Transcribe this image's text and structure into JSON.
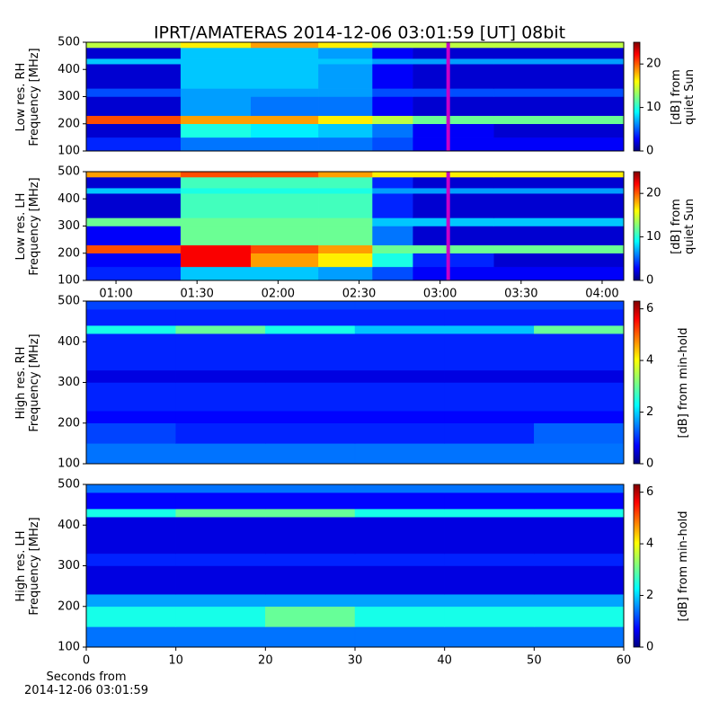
{
  "title": "IPRT/AMATERAS 2014-12-06 03:01:59 [UT]   08bit",
  "chart_data": [
    {
      "type": "heatmap",
      "ylabel": "Low res. RH\nFrequency [MHz]",
      "colorbar_label": "[dB] from\nquiet Sun",
      "colormap": "jet",
      "x_edges": [
        "00:49",
        "01:24",
        "01:50",
        "02:15",
        "02:35",
        "02:50",
        "03:20",
        "04:08"
      ],
      "y_edges": [
        100,
        150,
        200,
        230,
        300,
        330,
        420,
        440,
        480,
        500
      ],
      "values": [
        [
          4,
          6,
          6,
          6,
          5,
          3,
          3
        ],
        [
          2,
          10,
          9,
          8,
          6,
          3,
          2
        ],
        [
          20,
          18,
          18,
          16,
          14,
          12,
          12
        ],
        [
          2,
          7,
          6,
          6,
          3,
          2,
          2
        ],
        [
          5,
          7,
          7,
          7,
          5,
          5,
          5
        ],
        [
          2,
          8,
          8,
          7,
          3,
          2,
          2
        ],
        [
          8,
          8,
          8,
          8,
          7,
          7,
          7
        ],
        [
          2,
          8,
          8,
          7,
          3,
          2,
          2
        ],
        [
          14,
          16,
          18,
          16,
          14,
          14,
          14
        ]
      ],
      "xlim": [
        "00:49",
        "04:08"
      ],
      "ylim": [
        100,
        500
      ],
      "yticks": [
        100,
        200,
        300,
        400,
        500
      ],
      "clim": [
        0,
        25
      ],
      "cticks": [
        0,
        10,
        20
      ],
      "marker_x": "03:03",
      "marker_color": "#c800c8"
    },
    {
      "type": "heatmap",
      "ylabel": "Low res. LH\nFrequency [MHz]",
      "colorbar_label": "[dB] from\nquiet Sun",
      "colormap": "jet",
      "x_edges": [
        "00:49",
        "01:24",
        "01:50",
        "02:15",
        "02:35",
        "02:50",
        "03:20",
        "04:08"
      ],
      "y_edges": [
        100,
        150,
        200,
        230,
        300,
        330,
        420,
        440,
        480,
        500
      ],
      "values": [
        [
          4,
          8,
          8,
          7,
          5,
          3,
          3
        ],
        [
          3,
          22,
          18,
          16,
          10,
          4,
          2
        ],
        [
          20,
          22,
          20,
          18,
          12,
          12,
          12
        ],
        [
          3,
          12,
          12,
          12,
          6,
          2,
          2
        ],
        [
          12,
          12,
          12,
          12,
          8,
          8,
          8
        ],
        [
          2,
          11,
          11,
          11,
          4,
          2,
          2
        ],
        [
          8,
          10,
          10,
          10,
          7,
          7,
          7
        ],
        [
          2,
          11,
          11,
          11,
          4,
          2,
          2
        ],
        [
          18,
          20,
          20,
          18,
          16,
          16,
          16
        ]
      ],
      "xlim": [
        "00:49",
        "04:08"
      ],
      "xticks": [
        "01:00",
        "01:30",
        "02:00",
        "02:30",
        "03:00",
        "03:30",
        "04:00"
      ],
      "ylim": [
        100,
        500
      ],
      "yticks": [
        100,
        200,
        300,
        400,
        500
      ],
      "clim": [
        0,
        25
      ],
      "cticks": [
        0,
        10,
        20
      ],
      "marker_x": "03:03",
      "marker_color": "#c800c8"
    },
    {
      "type": "heatmap",
      "ylabel": "High res. RH\nFrequency [MHz]",
      "colorbar_label": "[dB] from min-hold",
      "colormap": "jet",
      "x_edges": [
        0,
        10,
        20,
        30,
        40,
        50,
        60
      ],
      "y_edges": [
        100,
        150,
        200,
        230,
        300,
        330,
        420,
        440,
        480,
        500
      ],
      "values": [
        [
          1.5,
          1.5,
          1.5,
          1.5,
          1.5,
          1.5
        ],
        [
          1.2,
          1.0,
          1.0,
          1.0,
          1.0,
          1.4
        ],
        [
          0.8,
          0.8,
          0.8,
          0.8,
          0.8,
          0.8
        ],
        [
          1.0,
          1.0,
          1.0,
          1.0,
          1.0,
          1.0
        ],
        [
          0.6,
          0.6,
          0.6,
          0.6,
          0.6,
          0.6
        ],
        [
          1.0,
          1.0,
          1.0,
          1.0,
          1.0,
          1.0
        ],
        [
          2.5,
          3,
          2.5,
          2,
          2,
          3
        ],
        [
          1.0,
          1.0,
          1.0,
          1.0,
          1.0,
          1.0
        ],
        [
          1.2,
          1.2,
          1.2,
          1.2,
          1.2,
          1.2
        ]
      ],
      "xlim": [
        0,
        60
      ],
      "ylim": [
        100,
        500
      ],
      "yticks": [
        100,
        200,
        300,
        400,
        500
      ],
      "clim": [
        0,
        6.3
      ],
      "cticks": [
        0,
        2,
        4,
        6
      ]
    },
    {
      "type": "heatmap",
      "ylabel": "High res. LH\nFrequency [MHz]",
      "colorbar_label": "[dB] from min-hold",
      "colormap": "jet",
      "xlabel": "Seconds from\n2014-12-06 03:01:59",
      "x_edges": [
        0,
        10,
        20,
        30,
        40,
        50,
        60
      ],
      "y_edges": [
        100,
        150,
        200,
        230,
        300,
        330,
        420,
        440,
        480,
        500
      ],
      "values": [
        [
          1.5,
          1.5,
          1.5,
          1.5,
          1.5,
          1.5
        ],
        [
          2.5,
          2.5,
          3,
          2.5,
          2.5,
          2.5
        ],
        [
          1.8,
          1.8,
          1.8,
          1.8,
          1.8,
          1.8
        ],
        [
          0.6,
          0.6,
          0.6,
          0.6,
          0.6,
          0.6
        ],
        [
          1.0,
          1.0,
          1.0,
          1.0,
          1.0,
          1.0
        ],
        [
          0.6,
          0.6,
          0.6,
          0.6,
          0.6,
          0.6
        ],
        [
          2.5,
          3,
          3,
          2.5,
          2.5,
          2.5
        ],
        [
          0.8,
          0.8,
          0.8,
          0.8,
          0.8,
          0.8
        ],
        [
          1.5,
          1.5,
          1.5,
          1.5,
          1.5,
          1.5
        ]
      ],
      "xlim": [
        0,
        60
      ],
      "xticks": [
        0,
        10,
        20,
        30,
        40,
        50,
        60
      ],
      "ylim": [
        100,
        500
      ],
      "yticks": [
        100,
        200,
        300,
        400,
        500
      ],
      "clim": [
        0,
        6.3
      ],
      "cticks": [
        0,
        2,
        4,
        6
      ]
    }
  ]
}
